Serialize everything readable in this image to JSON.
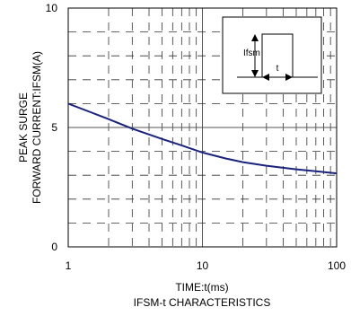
{
  "chart_data": {
    "type": "line",
    "title": "IFSM-t CHARACTERISTICS",
    "xlabel": "TIME:t(ms)",
    "ylabel_lines": [
      "PEAK SURGE",
      "FORWARD CURRENT:IFSM(A)"
    ],
    "x_scale": "log",
    "xlim": [
      1,
      100
    ],
    "ylim": [
      0,
      10
    ],
    "x_ticks": [
      1,
      10,
      100
    ],
    "x_tick_labels": [
      "1",
      "10",
      "100"
    ],
    "y_ticks": [
      0,
      5,
      10
    ],
    "y_tick_labels": [
      "0",
      "5",
      "10"
    ],
    "grid": "dashed minor, solid major",
    "line_color": "#1a237e",
    "series": [
      {
        "x": [
          1,
          1.5,
          2,
          3,
          5,
          7,
          10,
          15,
          20,
          30,
          50,
          70,
          100
        ],
        "y": [
          6.0,
          5.62,
          5.35,
          4.95,
          4.52,
          4.25,
          3.95,
          3.7,
          3.55,
          3.4,
          3.25,
          3.17,
          3.08
        ]
      }
    ],
    "inset": {
      "label_ifsm": "Ifsm",
      "label_t": "t"
    }
  }
}
